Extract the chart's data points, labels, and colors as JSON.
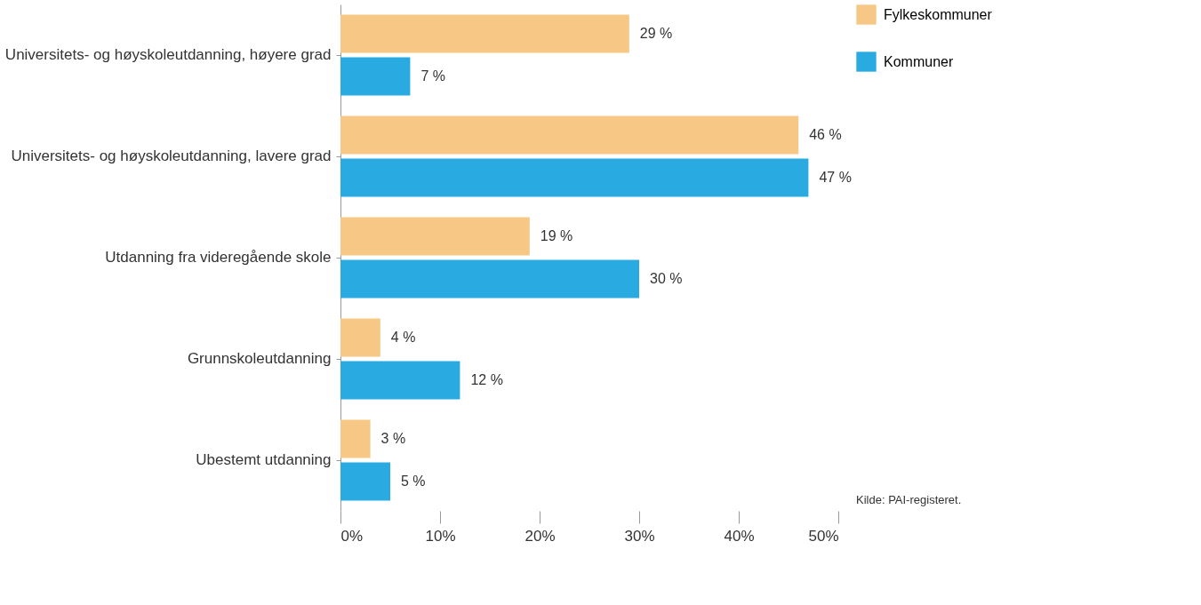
{
  "chart_data": {
    "type": "bar",
    "orientation": "horizontal",
    "categories": [
      "Universitets- og høyskoleutdanning, høyere grad",
      "Universitets- og høyskoleutdanning, lavere grad",
      "Utdanning fra videregående skole",
      "Grunnskoleutdanning",
      "Ubestemt utdanning"
    ],
    "series": [
      {
        "name": "Fylkeskommuner",
        "color": "#f7c885",
        "values": [
          29,
          46,
          19,
          4,
          3
        ],
        "value_labels": [
          "29 %",
          "46 %",
          "19 %",
          "4 %",
          "3 %"
        ]
      },
      {
        "name": "Kommuner",
        "color": "#29abe2",
        "values": [
          7,
          47,
          30,
          12,
          5
        ],
        "value_labels": [
          "7 %",
          "47 %",
          "30 %",
          "12 %",
          "5 %"
        ]
      }
    ],
    "xlim": [
      0,
      50
    ],
    "xticks": [
      {
        "value": 0,
        "label": "0%"
      },
      {
        "value": 10,
        "label": "10%"
      },
      {
        "value": 20,
        "label": "20%"
      },
      {
        "value": 30,
        "label": "30%"
      },
      {
        "value": 40,
        "label": "40%"
      },
      {
        "value": 50,
        "label": "50%"
      }
    ],
    "grid": false,
    "legend": "top right",
    "annotations": [
      "Kilde: PAI-registeret."
    ]
  }
}
